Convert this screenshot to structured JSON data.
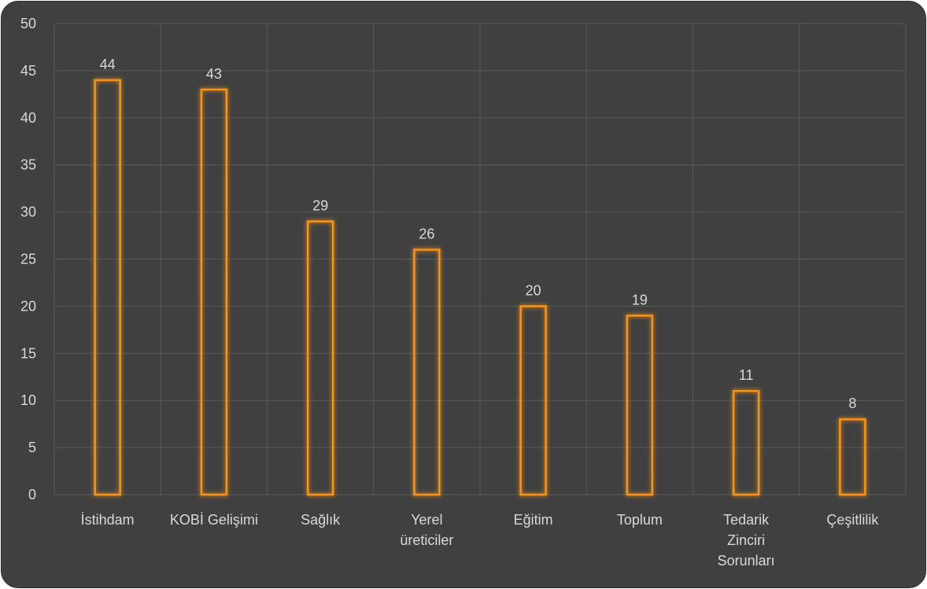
{
  "chart_data": {
    "type": "bar",
    "title": "",
    "xlabel": "",
    "ylabel": "",
    "categories": [
      [
        "İstihdam"
      ],
      [
        "KOBİ Gelişimi"
      ],
      [
        "Sağlık"
      ],
      [
        "Yerel",
        "üreticiler"
      ],
      [
        "Eğitim"
      ],
      [
        "Toplum"
      ],
      [
        "Tedarik",
        "Zinciri",
        "Sorunları"
      ],
      [
        "Çeşitlilik"
      ]
    ],
    "values": [
      44,
      43,
      29,
      26,
      20,
      19,
      11,
      8
    ],
    "ylim": [
      0,
      50
    ],
    "yticks": [
      "0",
      "5",
      "10",
      "15",
      "20",
      "25",
      "30",
      "35",
      "40",
      "45",
      "50"
    ],
    "grid": true,
    "bar_color": "#f7941d",
    "background_color": "#404040",
    "text_color": "#d9d9d9"
  }
}
